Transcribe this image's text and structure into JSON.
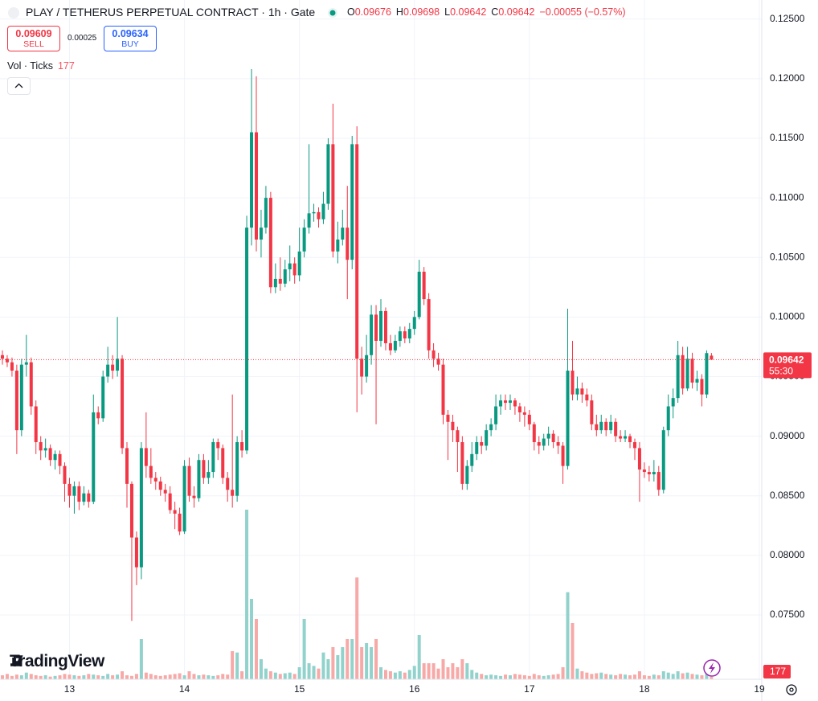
{
  "chart_data": {
    "type": "candlestick",
    "title": "PLAY / TETHERUS PERPETUAL CONTRACT · 1h · Gate",
    "ohlc_labels": [
      "O",
      "H",
      "L",
      "C"
    ],
    "change": "−0.00055 (−0.57%)",
    "sell": {
      "price": 0.09609,
      "label": "SELL"
    },
    "spread": 0.00025,
    "buy": {
      "price": 0.09634,
      "label": "BUY"
    },
    "volume_label": "Vol · Ticks",
    "countdown": "55:30",
    "logo": "TradingView",
    "up_color": "#089981",
    "down_color": "#f23645",
    "volume_up_color": "#92d2cc",
    "volume_down_color": "#f7a9a7",
    "grid": true,
    "ylim": [
      0.0696,
      0.1266
    ],
    "yticks": [
      {
        "value": 0.125,
        "label": "0.12500"
      },
      {
        "value": 0.12,
        "label": "0.12000"
      },
      {
        "value": 0.115,
        "label": "0.11500"
      },
      {
        "value": 0.11,
        "label": "0.11000"
      },
      {
        "value": 0.105,
        "label": "0.10500"
      },
      {
        "value": 0.1,
        "label": "0.10000"
      },
      {
        "value": 0.095,
        "label": "0.09500"
      },
      {
        "value": 0.09,
        "label": "0.09000"
      },
      {
        "value": 0.085,
        "label": "0.08500"
      },
      {
        "value": 0.08,
        "label": "0.08000"
      },
      {
        "value": 0.075,
        "label": "0.07500"
      }
    ],
    "categories": [
      null,
      null,
      null,
      null,
      null,
      null,
      null,
      null,
      null,
      null,
      null,
      null,
      null,
      null,
      "13",
      null,
      null,
      null,
      null,
      null,
      null,
      null,
      null,
      null,
      null,
      null,
      null,
      null,
      null,
      null,
      null,
      null,
      null,
      null,
      null,
      null,
      null,
      null,
      "14",
      null,
      null,
      null,
      null,
      null,
      null,
      null,
      null,
      null,
      null,
      null,
      null,
      null,
      null,
      null,
      null,
      null,
      null,
      null,
      null,
      null,
      null,
      null,
      "15",
      null,
      null,
      null,
      null,
      null,
      null,
      null,
      null,
      null,
      null,
      null,
      null,
      null,
      null,
      null,
      null,
      null,
      null,
      null,
      null,
      null,
      null,
      null,
      "16",
      null,
      null,
      null,
      null,
      null,
      null,
      null,
      null,
      null,
      null,
      null,
      null,
      null,
      null,
      null,
      null,
      null,
      null,
      null,
      null,
      null,
      null,
      null,
      "17",
      null,
      null,
      null,
      null,
      null,
      null,
      null,
      null,
      null,
      null,
      null,
      null,
      null,
      null,
      null,
      null,
      null,
      null,
      null,
      null,
      null,
      null,
      null,
      "18",
      null,
      null,
      null,
      null,
      null,
      null,
      null,
      null,
      null,
      null,
      null,
      null,
      null,
      null,
      null,
      null,
      null,
      null,
      null,
      null,
      null,
      null,
      null,
      "19"
    ],
    "open": [
      0.0968,
      0.0965,
      0.0962,
      0.0955,
      0.0905,
      0.096,
      0.0962,
      0.0925,
      0.0895,
      0.0888,
      0.089,
      0.088,
      0.0885,
      0.0875,
      0.086,
      0.085,
      0.0858,
      0.0845,
      0.0852,
      0.0845,
      0.092,
      0.0915,
      0.095,
      0.096,
      0.0955,
      0.0965,
      0.089,
      0.086,
      0.0815,
      0.079,
      0.089,
      0.0875,
      0.0865,
      0.0862,
      0.0855,
      0.0852,
      0.0838,
      0.0835,
      0.082,
      0.0875,
      0.085,
      0.0848,
      0.088,
      0.0865,
      0.087,
      0.0895,
      0.089,
      0.0865,
      0.0855,
      0.085,
      0.0895,
      0.0888,
      0.1075,
      0.1155,
      0.1065,
      0.1075,
      0.11,
      0.1025,
      0.1032,
      0.1028,
      0.104,
      0.1045,
      0.1035,
      0.1055,
      0.1075,
      0.1087,
      0.1088,
      0.1082,
      0.1095,
      0.1145,
      0.1055,
      0.1065,
      0.1075,
      0.1048,
      0.1145,
      0.0965,
      0.095,
      0.0968,
      0.1002,
      0.098,
      0.1005,
      0.0978,
      0.0972,
      0.098,
      0.0988,
      0.0982,
      0.099,
      0.1,
      0.1038,
      0.1015,
      0.0972,
      0.0965,
      0.096,
      0.0918,
      0.0912,
      0.0905,
      0.0895,
      0.086,
      0.0875,
      0.0885,
      0.0895,
      0.0892,
      0.0905,
      0.091,
      0.0925,
      0.093,
      0.0928,
      0.093,
      0.0925,
      0.092,
      0.0918,
      0.091,
      0.0895,
      0.0892,
      0.0898,
      0.0902,
      0.0895,
      0.0892,
      0.0875,
      0.0955,
      0.0935,
      0.094,
      0.0935,
      0.093,
      0.091,
      0.0905,
      0.0912,
      0.0905,
      0.0912,
      0.09,
      0.0898,
      0.09,
      0.0895,
      0.089,
      0.0872,
      0.087,
      0.0868,
      0.087,
      0.0855,
      0.0905,
      0.0925,
      0.0932,
      0.0968,
      0.094,
      0.0965,
      0.0945,
      0.0948,
      0.0935,
      0.09676,
      null,
      null,
      null,
      null,
      null,
      null,
      null,
      null,
      null,
      null
    ],
    "high": [
      0.0972,
      0.0968,
      0.0966,
      0.096,
      0.0965,
      0.0985,
      0.0966,
      0.093,
      0.09,
      0.0898,
      0.0893,
      0.0888,
      0.0888,
      0.0878,
      0.0865,
      0.0862,
      0.0862,
      0.0858,
      0.0855,
      0.0935,
      0.0925,
      0.0955,
      0.0975,
      0.0968,
      0.1,
      0.0968,
      0.0895,
      0.0862,
      0.082,
      0.0895,
      0.092,
      0.089,
      0.087,
      0.0866,
      0.086,
      0.0858,
      0.0845,
      0.084,
      0.088,
      0.0882,
      0.0858,
      0.0885,
      0.0885,
      0.088,
      0.0898,
      0.0898,
      0.0893,
      0.087,
      0.0935,
      0.09,
      0.0905,
      0.1085,
      0.1208,
      0.1202,
      0.109,
      0.111,
      0.1105,
      0.1045,
      0.105,
      0.1048,
      0.106,
      0.105,
      0.1075,
      0.1082,
      0.1145,
      0.1095,
      0.1092,
      0.1105,
      0.115,
      0.1179,
      0.108,
      0.109,
      0.111,
      0.1152,
      0.116,
      0.0975,
      0.0985,
      0.101,
      0.101,
      0.1015,
      0.1008,
      0.0985,
      0.0985,
      0.0992,
      0.0992,
      0.0995,
      0.1005,
      0.1048,
      0.1042,
      0.102,
      0.0978,
      0.097,
      0.0965,
      0.0922,
      0.0918,
      0.0908,
      0.09,
      0.088,
      0.0895,
      0.09,
      0.09,
      0.091,
      0.0915,
      0.0935,
      0.0935,
      0.0935,
      0.0935,
      0.0932,
      0.0928,
      0.0925,
      0.0922,
      0.0912,
      0.09,
      0.0902,
      0.0908,
      0.0905,
      0.09,
      0.0895,
      0.1007,
      0.098,
      0.095,
      0.0945,
      0.094,
      0.0935,
      0.0918,
      0.0918,
      0.0915,
      0.0918,
      0.0915,
      0.0905,
      0.0905,
      0.0902,
      0.0898,
      0.0895,
      0.0878,
      0.0875,
      0.088,
      0.0875,
      0.0908,
      0.0935,
      0.094,
      0.098,
      0.0975,
      0.0975,
      0.097,
      0.0955,
      0.0952,
      0.0972,
      0.09698,
      null,
      null,
      null,
      null,
      null,
      null,
      null,
      null,
      null,
      null
    ],
    "low": [
      0.096,
      0.0958,
      0.095,
      0.0885,
      0.09,
      0.095,
      0.0918,
      0.0885,
      0.088,
      0.0882,
      0.0875,
      0.0872,
      0.0868,
      0.0845,
      0.084,
      0.0835,
      0.0838,
      0.0842,
      0.084,
      0.0843,
      0.091,
      0.0912,
      0.0945,
      0.0948,
      0.095,
      0.0885,
      0.084,
      0.0745,
      0.0775,
      0.078,
      0.0865,
      0.086,
      0.0855,
      0.085,
      0.0845,
      0.0835,
      0.0822,
      0.0817,
      0.0818,
      0.0845,
      0.084,
      0.0845,
      0.086,
      0.086,
      0.0865,
      0.088,
      0.086,
      0.0845,
      0.084,
      0.0845,
      0.0882,
      0.0885,
      0.106,
      0.1055,
      0.105,
      0.107,
      0.102,
      0.102,
      0.1022,
      0.1025,
      0.103,
      0.1028,
      0.103,
      0.105,
      0.107,
      0.108,
      0.1075,
      0.1078,
      0.109,
      0.105,
      0.1045,
      0.106,
      0.1015,
      0.104,
      0.092,
      0.0935,
      0.0945,
      0.096,
      0.091,
      0.0975,
      0.0972,
      0.0968,
      0.097,
      0.0975,
      0.0978,
      0.0978,
      0.0985,
      0.0998,
      0.101,
      0.0965,
      0.0958,
      0.0955,
      0.091,
      0.088,
      0.0895,
      0.087,
      0.0855,
      0.0855,
      0.087,
      0.088,
      0.0885,
      0.0888,
      0.09,
      0.0905,
      0.0918,
      0.0922,
      0.0922,
      0.0918,
      0.0912,
      0.0908,
      0.0905,
      0.0888,
      0.0885,
      0.0888,
      0.0892,
      0.089,
      0.0885,
      0.086,
      0.0872,
      0.093,
      0.093,
      0.0928,
      0.0925,
      0.0905,
      0.09,
      0.0902,
      0.09,
      0.0902,
      0.0895,
      0.0895,
      0.0895,
      0.089,
      0.088,
      0.0845,
      0.0865,
      0.0862,
      0.0862,
      0.085,
      0.0852,
      0.09,
      0.0915,
      0.0928,
      0.0935,
      0.0938,
      0.094,
      0.0938,
      0.0925,
      0.0932,
      0.09642,
      null,
      null,
      null,
      null,
      null,
      null,
      null,
      null,
      null,
      null
    ],
    "close": [
      0.0965,
      0.0962,
      0.0955,
      0.0905,
      0.096,
      0.0962,
      0.0925,
      0.0895,
      0.0888,
      0.089,
      0.088,
      0.0885,
      0.0875,
      0.086,
      0.085,
      0.0858,
      0.0845,
      0.0852,
      0.0845,
      0.092,
      0.0915,
      0.095,
      0.096,
      0.0955,
      0.0965,
      0.089,
      0.086,
      0.0815,
      0.079,
      0.089,
      0.0875,
      0.0865,
      0.0862,
      0.0855,
      0.0852,
      0.0838,
      0.0835,
      0.082,
      0.0875,
      0.085,
      0.0848,
      0.088,
      0.0865,
      0.087,
      0.0895,
      0.089,
      0.0865,
      0.0855,
      0.085,
      0.0895,
      0.0888,
      0.1075,
      0.1155,
      0.1065,
      0.1075,
      0.11,
      0.1025,
      0.1032,
      0.1028,
      0.104,
      0.1045,
      0.1035,
      0.1055,
      0.1075,
      0.1087,
      0.1088,
      0.1082,
      0.1095,
      0.1145,
      0.1055,
      0.1065,
      0.1075,
      0.1048,
      0.1145,
      0.0965,
      0.095,
      0.0968,
      0.1002,
      0.098,
      0.1005,
      0.0978,
      0.0972,
      0.098,
      0.0988,
      0.0982,
      0.099,
      0.1,
      0.1038,
      0.1015,
      0.0972,
      0.0965,
      0.096,
      0.0918,
      0.0912,
      0.0905,
      0.0895,
      0.086,
      0.0875,
      0.0885,
      0.0895,
      0.0892,
      0.0905,
      0.091,
      0.0925,
      0.093,
      0.0928,
      0.093,
      0.0925,
      0.092,
      0.0918,
      0.091,
      0.0895,
      0.0892,
      0.0898,
      0.0902,
      0.0895,
      0.0892,
      0.0875,
      0.0955,
      0.0935,
      0.094,
      0.0935,
      0.093,
      0.091,
      0.0905,
      0.0912,
      0.0905,
      0.0912,
      0.09,
      0.0898,
      0.09,
      0.0895,
      0.089,
      0.0872,
      0.087,
      0.0868,
      0.087,
      0.0855,
      0.0905,
      0.0925,
      0.0932,
      0.0968,
      0.094,
      0.0965,
      0.0945,
      0.0948,
      0.0935,
      0.09697,
      0.09642,
      null,
      null,
      null,
      null,
      null,
      null,
      null,
      null,
      null,
      null
    ],
    "volume": [
      300,
      400,
      250,
      350,
      300,
      500,
      400,
      300,
      250,
      300,
      200,
      250,
      300,
      400,
      350,
      300,
      250,
      300,
      400,
      350,
      300,
      250,
      400,
      300,
      350,
      600,
      300,
      250,
      400,
      3000,
      500,
      400,
      300,
      250,
      300,
      350,
      400,
      450,
      300,
      600,
      400,
      300,
      350,
      300,
      250,
      300,
      400,
      350,
      2100,
      2000,
      600,
      12660,
      6000,
      4500,
      1500,
      800,
      600,
      500,
      400,
      450,
      500,
      400,
      900,
      4500,
      1200,
      1000,
      800,
      2000,
      1500,
      2400,
      1800,
      2400,
      3000,
      3000,
      7600,
      2400,
      2700,
      2400,
      3000,
      900,
      700,
      600,
      500,
      600,
      500,
      700,
      1000,
      3300,
      1200,
      1200,
      1200,
      800,
      1500,
      900,
      1200,
      900,
      1500,
      1200,
      700,
      500,
      400,
      300,
      350,
      300,
      250,
      350,
      300,
      400,
      350,
      300,
      250,
      400,
      300,
      250,
      300,
      350,
      400,
      900,
      6500,
      4200,
      800,
      600,
      500,
      400,
      450,
      500,
      400,
      350,
      300,
      400,
      350,
      300,
      350,
      600,
      300,
      250,
      350,
      300,
      600,
      500,
      400,
      600,
      450,
      500,
      400,
      350,
      300,
      400,
      177,
      null,
      null,
      null,
      null,
      null,
      null,
      null,
      null,
      null,
      null
    ]
  }
}
